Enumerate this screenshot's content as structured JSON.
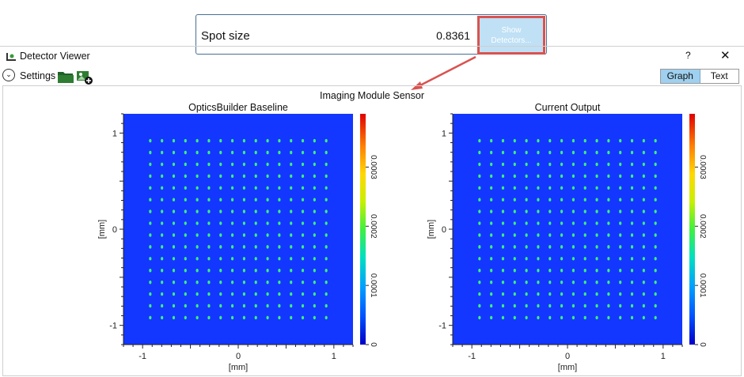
{
  "callout": {
    "label": "Spot size",
    "value": "0.8361",
    "button_line1": "Show",
    "button_line2": "Detectors..."
  },
  "window": {
    "title": "Detector Viewer",
    "help": "?",
    "close": "✕",
    "settings_label": "Settings",
    "tabs": [
      "Graph",
      "Text"
    ],
    "active_tab": "Graph"
  },
  "sensor_title": "Imaging Module Sensor",
  "colors": {
    "plot_bg": "#1437ff",
    "spot": "#3cf07a",
    "callout_border": "#d9534f",
    "selected_tab": "#9fd0ef"
  },
  "chart_data": [
    {
      "type": "heatmap",
      "title": "OpticsBuilder Baseline",
      "xlabel": "[mm]",
      "ylabel": "[mm]",
      "xlim": [
        -1.2,
        1.2
      ],
      "ylim": [
        -1.2,
        1.2
      ],
      "x_ticks": [
        "-1",
        "0",
        "1"
      ],
      "y_ticks": [
        "1",
        "0",
        "-1"
      ],
      "colorbar_ticks": [
        "0",
        "0.0001",
        "0.0002",
        "0.0003"
      ],
      "spot_grid": {
        "rows": 16,
        "cols": 16,
        "range": [
          -0.92,
          0.92
        ]
      }
    },
    {
      "type": "heatmap",
      "title": "Current Output",
      "xlabel": "[mm]",
      "ylabel": "[mm]",
      "xlim": [
        -1.2,
        1.2
      ],
      "ylim": [
        -1.2,
        1.2
      ],
      "x_ticks": [
        "-1",
        "0",
        "1"
      ],
      "y_ticks": [
        "1",
        "0",
        "-1"
      ],
      "colorbar_ticks": [
        "0",
        "0.0001",
        "0.0002",
        "0.0003"
      ],
      "spot_grid": {
        "rows": 16,
        "cols": 16,
        "range": [
          -0.92,
          0.92
        ]
      }
    }
  ]
}
